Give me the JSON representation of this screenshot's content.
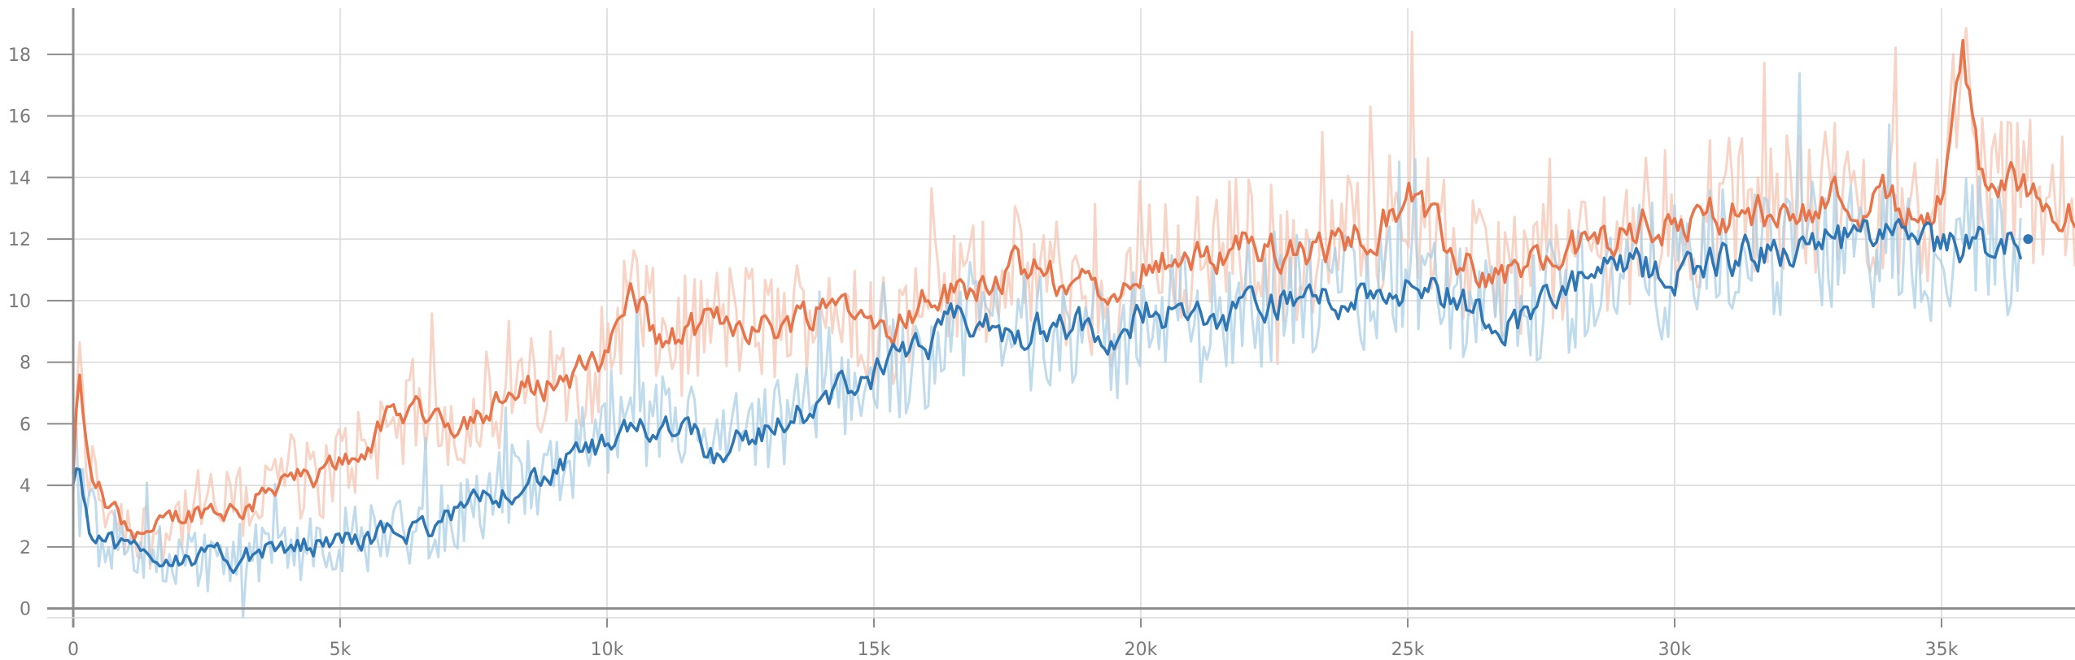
{
  "colors": {
    "orange": "#e8744a",
    "orange_raw": "#f6c6b3",
    "blue": "#2f77b4",
    "blue_raw": "#a9cfe6"
  },
  "chart_data": {
    "type": "line",
    "title": "",
    "xlabel": "",
    "ylabel": "",
    "xlim": [
      0,
      37500
    ],
    "ylim": [
      -0.3,
      19.5
    ],
    "grid": true,
    "legend": "none",
    "x_ticks": [
      {
        "value": 0,
        "label": "0"
      },
      {
        "value": 5000,
        "label": "5k"
      },
      {
        "value": 10000,
        "label": "10k"
      },
      {
        "value": 15000,
        "label": "15k"
      },
      {
        "value": 20000,
        "label": "20k"
      },
      {
        "value": 25000,
        "label": "25k"
      },
      {
        "value": 30000,
        "label": "30k"
      },
      {
        "value": 35000,
        "label": "35k"
      }
    ],
    "y_ticks": [
      {
        "value": 0,
        "label": "0"
      },
      {
        "value": 2,
        "label": "2"
      },
      {
        "value": 4,
        "label": "4"
      },
      {
        "value": 6,
        "label": "6"
      },
      {
        "value": 8,
        "label": "8"
      },
      {
        "value": 10,
        "label": "10"
      },
      {
        "value": 12,
        "label": "12"
      },
      {
        "value": 14,
        "label": "14"
      },
      {
        "value": 16,
        "label": "16"
      },
      {
        "value": 18,
        "label": "18"
      }
    ],
    "series": [
      {
        "color_key": "orange",
        "raw_color_key": "orange_raw",
        "x": [
          0,
          100,
          300,
          600,
          1000,
          1500,
          2000,
          2500,
          3000,
          3500,
          4000,
          4500,
          5000,
          5500,
          6000,
          6500,
          7000,
          7500,
          8000,
          8500,
          9000,
          9500,
          10000,
          10300,
          10500,
          11000,
          11500,
          12000,
          12500,
          13000,
          13500,
          14000,
          14500,
          15000,
          15500,
          16000,
          16500,
          17000,
          17500,
          18000,
          18500,
          19000,
          19500,
          20000,
          20500,
          21000,
          21500,
          22000,
          22500,
          23000,
          23500,
          24000,
          24500,
          25000,
          25500,
          26000,
          26500,
          27000,
          27500,
          28000,
          28500,
          29000,
          29500,
          30000,
          30500,
          31000,
          31500,
          32000,
          32500,
          33000,
          33500,
          34000,
          34500,
          35000,
          35400,
          35700,
          36000,
          36500,
          37000,
          37500
        ],
        "values": [
          4.3,
          7.6,
          4.5,
          3.5,
          2.7,
          2.4,
          3.0,
          3.3,
          3.2,
          3.6,
          4.5,
          4.0,
          4.8,
          5.3,
          6.2,
          6.6,
          6.0,
          6.3,
          6.6,
          7.1,
          7.4,
          7.7,
          8.1,
          9.8,
          10.3,
          8.6,
          8.9,
          9.3,
          9.4,
          9.1,
          9.4,
          9.9,
          10.1,
          9.1,
          9.4,
          10.0,
          10.3,
          10.7,
          11.0,
          10.9,
          10.6,
          10.4,
          9.5,
          11.2,
          11.5,
          11.2,
          11.6,
          12.0,
          11.6,
          11.4,
          11.7,
          12.2,
          12.6,
          13.6,
          12.2,
          11.2,
          10.9,
          11.0,
          11.3,
          11.5,
          11.9,
          12.1,
          12.5,
          12.3,
          12.7,
          12.9,
          12.8,
          12.9,
          13.2,
          13.4,
          13.1,
          13.4,
          12.8,
          13.3,
          17.6,
          14.5,
          13.7,
          13.9,
          13.4,
          12.5
        ]
      },
      {
        "color_key": "blue",
        "raw_color_key": "blue_raw",
        "x": [
          0,
          100,
          300,
          600,
          1000,
          1500,
          2000,
          2500,
          3000,
          3500,
          4000,
          4500,
          5000,
          5500,
          6000,
          6500,
          7000,
          7500,
          8000,
          8500,
          9000,
          9500,
          10000,
          10500,
          11000,
          11500,
          12000,
          12500,
          13000,
          13500,
          14000,
          14500,
          15000,
          15500,
          16000,
          16500,
          17000,
          17500,
          18000,
          18500,
          19000,
          19500,
          20000,
          20500,
          21000,
          21500,
          22000,
          22500,
          23000,
          23500,
          24000,
          24500,
          25000,
          25500,
          26000,
          26500,
          27000,
          27500,
          28000,
          28500,
          29000,
          29500,
          30000,
          30500,
          31000,
          31500,
          32000,
          32500,
          33000,
          33500,
          34000,
          34500,
          35000,
          35500,
          36000,
          36500
        ],
        "values": [
          4.4,
          4.8,
          2.8,
          2.3,
          1.9,
          1.8,
          1.7,
          1.6,
          1.6,
          1.8,
          2.0,
          2.1,
          2.2,
          2.3,
          2.5,
          2.6,
          2.9,
          3.3,
          3.8,
          4.2,
          4.3,
          5.1,
          5.2,
          5.7,
          6.0,
          6.1,
          5.0,
          5.6,
          5.7,
          6.3,
          6.6,
          7.3,
          7.6,
          8.0,
          8.4,
          9.3,
          9.2,
          8.8,
          9.0,
          9.4,
          9.0,
          8.2,
          9.8,
          9.7,
          9.3,
          9.4,
          9.6,
          9.9,
          10.1,
          10.0,
          10.2,
          10.4,
          10.6,
          10.4,
          10.0,
          9.5,
          9.3,
          9.9,
          10.3,
          10.8,
          11.0,
          11.0,
          10.9,
          11.3,
          11.4,
          11.5,
          11.6,
          11.8,
          11.9,
          12.1,
          11.9,
          11.8,
          11.6,
          11.9,
          11.7,
          12.0
        ]
      }
    ]
  }
}
